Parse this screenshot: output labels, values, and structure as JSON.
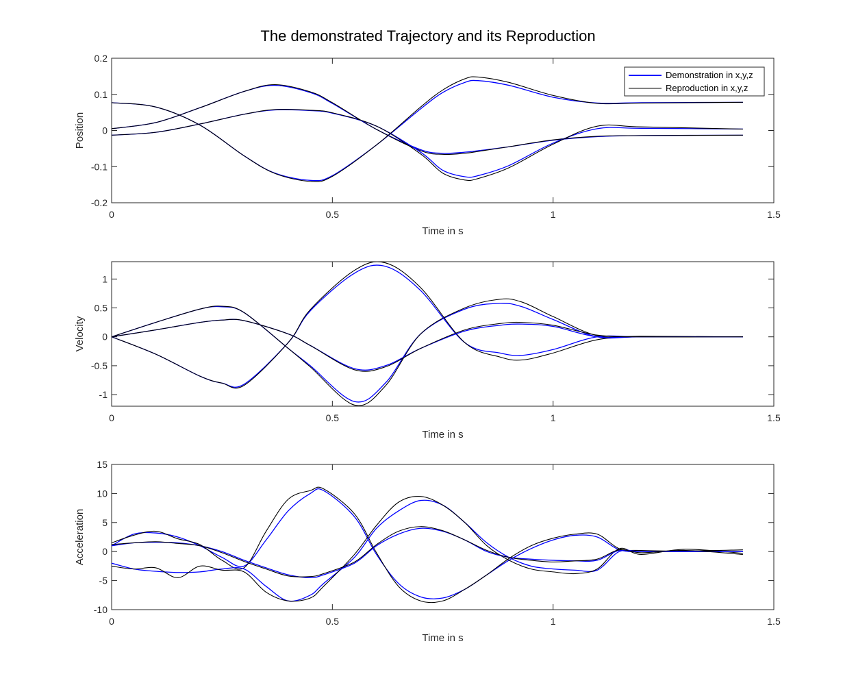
{
  "title": "The demonstrated Trajectory and its Reproduction",
  "colors": {
    "demonstration": "#0000ff",
    "reproduction": "#000000",
    "axes": "#262626",
    "background": "#ffffff"
  },
  "legend": {
    "placement": "top-right",
    "entries": [
      "Demonstration in x,y,z",
      "Reproduction in x,y,z"
    ]
  },
  "chart_data": [
    {
      "type": "line",
      "ylabel": "Position",
      "xlabel": "Time in s",
      "xlim": [
        0,
        1.5
      ],
      "ylim": [
        -0.2,
        0.2
      ],
      "xticks": [
        0,
        0.5,
        1,
        1.5
      ],
      "yticks": [
        -0.2,
        -0.1,
        0,
        0.1,
        0.2
      ],
      "xticklabels": [
        "0",
        "0.5",
        "1",
        "1.5"
      ],
      "yticklabels": [
        "-0.2",
        "-0.1",
        "0",
        "0.1",
        "0.2"
      ],
      "x": [
        0,
        0.1,
        0.2,
        0.3,
        0.37,
        0.45,
        0.5,
        0.6,
        0.7,
        0.75,
        0.8,
        0.83,
        0.9,
        1.0,
        1.1,
        1.2,
        1.43
      ],
      "series": [
        {
          "name": "Demonstration in x,y,z",
          "values": [
            0.005,
            0.022,
            0.063,
            0.108,
            0.125,
            0.105,
            0.075,
            0.003,
            -0.053,
            -0.063,
            -0.06,
            -0.056,
            -0.045,
            -0.027,
            -0.017,
            -0.014,
            -0.013
          ]
        },
        {
          "name": "Reproduction in x,y,z",
          "values": [
            0.005,
            0.022,
            0.063,
            0.108,
            0.127,
            0.107,
            0.077,
            0.003,
            -0.056,
            -0.066,
            -0.063,
            -0.058,
            -0.045,
            -0.026,
            -0.016,
            -0.014,
            -0.013
          ]
        },
        {
          "values": [
            0.077,
            0.065,
            0.015,
            -0.07,
            -0.118,
            -0.138,
            -0.125,
            -0.04,
            0.06,
            0.105,
            0.133,
            0.138,
            0.125,
            0.092,
            0.076,
            0.077,
            0.078
          ]
        },
        {
          "values": [
            0.077,
            0.065,
            0.015,
            -0.07,
            -0.119,
            -0.141,
            -0.127,
            -0.04,
            0.065,
            0.112,
            0.143,
            0.148,
            0.133,
            0.097,
            0.075,
            0.076,
            0.078
          ]
        },
        {
          "values": [
            -0.013,
            -0.005,
            0.018,
            0.045,
            0.057,
            0.055,
            0.048,
            0.012,
            -0.06,
            -0.11,
            -0.128,
            -0.125,
            -0.097,
            -0.035,
            0.005,
            0.006,
            0.004
          ]
        },
        {
          "values": [
            -0.013,
            -0.005,
            0.018,
            0.045,
            0.058,
            0.056,
            0.049,
            0.012,
            -0.065,
            -0.118,
            -0.137,
            -0.133,
            -0.103,
            -0.038,
            0.012,
            0.01,
            0.004
          ]
        }
      ]
    },
    {
      "type": "line",
      "ylabel": "Velocity",
      "xlabel": "Time in s",
      "xlim": [
        0,
        1.5
      ],
      "ylim": [
        -1.2,
        1.3
      ],
      "xticks": [
        0,
        0.5,
        1,
        1.5
      ],
      "yticks": [
        -1,
        -0.5,
        0,
        0.5,
        1
      ],
      "xticklabels": [
        "0",
        "0.5",
        "1",
        "1.5"
      ],
      "yticklabels": [
        "-1",
        "-0.5",
        "0",
        "0.5",
        "1"
      ],
      "x": [
        0,
        0.1,
        0.2,
        0.25,
        0.3,
        0.4,
        0.45,
        0.55,
        0.62,
        0.7,
        0.8,
        0.88,
        0.93,
        1.0,
        1.1,
        1.2,
        1.43
      ],
      "series": [
        {
          "name": "Demonstration in x,y,z",
          "values": [
            0,
            0.25,
            0.48,
            0.52,
            0.42,
            -0.2,
            -0.5,
            -1.12,
            -0.8,
            0.05,
            0.48,
            0.58,
            0.52,
            0.3,
            0.0,
            0.0,
            0.0
          ]
        },
        {
          "name": "Reproduction in x,y,z",
          "values": [
            0,
            0.25,
            0.48,
            0.53,
            0.42,
            -0.2,
            -0.52,
            -1.18,
            -0.85,
            0.05,
            0.5,
            0.65,
            0.6,
            0.35,
            0.02,
            0.01,
            0.0
          ]
        },
        {
          "values": [
            0,
            -0.3,
            -0.68,
            -0.8,
            -0.82,
            -0.1,
            0.45,
            1.1,
            1.22,
            0.8,
            -0.1,
            -0.28,
            -0.32,
            -0.22,
            0.0,
            0.0,
            0.0
          ]
        },
        {
          "values": [
            0,
            -0.3,
            -0.68,
            -0.8,
            -0.84,
            -0.1,
            0.47,
            1.15,
            1.28,
            0.85,
            -0.1,
            -0.35,
            -0.4,
            -0.28,
            -0.05,
            0.0,
            0.0
          ]
        },
        {
          "values": [
            0,
            0.12,
            0.25,
            0.29,
            0.28,
            0.05,
            -0.15,
            -0.55,
            -0.5,
            -0.2,
            0.1,
            0.2,
            0.22,
            0.18,
            0.0,
            0.0,
            0.0
          ]
        },
        {
          "values": [
            0,
            0.12,
            0.25,
            0.29,
            0.28,
            0.05,
            -0.15,
            -0.57,
            -0.52,
            -0.2,
            0.12,
            0.23,
            0.25,
            0.2,
            0.03,
            0.0,
            0.0
          ]
        }
      ]
    },
    {
      "type": "line",
      "ylabel": "Acceleration",
      "xlabel": "Time in s",
      "xlim": [
        0,
        1.5
      ],
      "ylim": [
        -10,
        15
      ],
      "xticks": [
        0,
        0.5,
        1,
        1.5
      ],
      "yticks": [
        -10,
        -5,
        0,
        5,
        10,
        15
      ],
      "xticklabels": [
        "0",
        "0.5",
        "1",
        "1.5"
      ],
      "yticklabels": [
        "-10",
        "-5",
        "0",
        "5",
        "10",
        "15"
      ],
      "x": [
        0,
        0.05,
        0.1,
        0.15,
        0.2,
        0.25,
        0.3,
        0.35,
        0.4,
        0.45,
        0.48,
        0.55,
        0.6,
        0.65,
        0.7,
        0.75,
        0.8,
        0.85,
        0.9,
        0.95,
        1.0,
        1.05,
        1.1,
        1.15,
        1.2,
        1.3,
        1.43
      ],
      "series": [
        {
          "name": "Demonstration in x,y,z",
          "values": [
            1.0,
            3.0,
            3.2,
            2.5,
            1.0,
            -1.0,
            -2.5,
            2.0,
            7.0,
            10.0,
            10.5,
            6.0,
            -0.5,
            -5.5,
            -7.8,
            -8.0,
            -6.5,
            -4.0,
            -1.5,
            0.5,
            2.0,
            2.8,
            2.5,
            0.3,
            0.0,
            0.0,
            0.0
          ]
        },
        {
          "name": "Reproduction in x,y,z",
          "values": [
            1.5,
            2.8,
            3.5,
            2.2,
            1.2,
            -1.5,
            -2.8,
            3.5,
            9.0,
            10.5,
            10.8,
            6.5,
            -0.2,
            -6.0,
            -8.5,
            -8.5,
            -6.5,
            -4.0,
            -1.2,
            1.0,
            2.3,
            3.0,
            3.0,
            0.5,
            0.2,
            0.1,
            0.3
          ]
        },
        {
          "values": [
            -2.0,
            -3.0,
            -3.4,
            -3.6,
            -3.5,
            -3.0,
            -3.0,
            -6.0,
            -8.5,
            -7.5,
            -5.5,
            -1.0,
            4.0,
            7.0,
            8.8,
            8.0,
            5.0,
            1.5,
            -1.0,
            -2.5,
            -3.0,
            -3.2,
            -3.2,
            0.0,
            0.0,
            0.0,
            0.0
          ]
        },
        {
          "values": [
            -2.5,
            -3.0,
            -2.8,
            -4.5,
            -2.5,
            -3.2,
            -3.5,
            -7.0,
            -8.5,
            -8.0,
            -6.0,
            -0.5,
            4.5,
            8.5,
            9.5,
            8.0,
            5.0,
            1.0,
            -1.5,
            -3.0,
            -3.5,
            -3.8,
            -3.0,
            0.5,
            -0.5,
            0.4,
            -0.3
          ]
        },
        {
          "values": [
            1.0,
            1.5,
            1.6,
            1.5,
            1.0,
            0.0,
            -1.5,
            -2.8,
            -4.0,
            -4.5,
            -4.0,
            -2.0,
            1.0,
            3.0,
            4.0,
            3.5,
            2.0,
            0.0,
            -1.0,
            -1.3,
            -1.5,
            -1.6,
            -1.5,
            0.2,
            0.0,
            0.0,
            0.0
          ]
        },
        {
          "values": [
            1.2,
            1.5,
            1.7,
            1.4,
            1.0,
            -0.2,
            -1.7,
            -3.0,
            -4.2,
            -4.3,
            -3.8,
            -1.8,
            1.2,
            3.5,
            4.3,
            3.6,
            2.0,
            0.2,
            -1.0,
            -1.5,
            -1.8,
            -1.6,
            -1.3,
            0.3,
            -0.2,
            0.2,
            -0.5
          ]
        }
      ]
    }
  ]
}
